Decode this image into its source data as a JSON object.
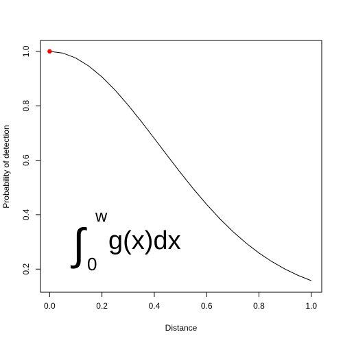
{
  "chart_data": {
    "type": "line",
    "title": "",
    "xlabel": "Distance",
    "ylabel": "Probability of detection",
    "xlim": [
      -0.035,
      1.04
    ],
    "ylim": [
      0.115,
      1.04
    ],
    "xticks": [
      0.0,
      0.2,
      0.4,
      0.6,
      0.8,
      1.0
    ],
    "yticks": [
      0.2,
      0.4,
      0.6,
      0.8,
      1.0
    ],
    "xtick_labels": [
      "0.0",
      "0.2",
      "0.4",
      "0.6",
      "0.8",
      "1.0"
    ],
    "ytick_labels": [
      "0.2",
      "0.4",
      "0.6",
      "0.8",
      "1.0"
    ],
    "grid": false,
    "legend": "none",
    "series": [
      {
        "x": [
          0.0,
          0.05,
          0.1,
          0.15,
          0.2,
          0.25,
          0.3,
          0.35,
          0.4,
          0.45,
          0.5,
          0.55,
          0.6,
          0.65,
          0.7,
          0.75,
          0.8,
          0.85,
          0.9,
          0.95,
          1.0
        ],
        "y": [
          1.0,
          0.9938,
          0.9755,
          0.9458,
          0.906,
          0.8577,
          0.8026,
          0.7428,
          0.6802,
          0.6168,
          0.5543,
          0.4943,
          0.4378,
          0.3857,
          0.3384,
          0.2962,
          0.2592,
          0.2272,
          0.1998,
          0.1768,
          0.1576
        ],
        "color": "#000000"
      }
    ],
    "highlight_point": {
      "x": 0.0,
      "y": 1.0,
      "color": "#ff0000"
    },
    "annotation": {
      "integral_sign": "∫",
      "upper_limit": "w",
      "lower_limit": "0",
      "expression": "g(x)dx"
    }
  }
}
